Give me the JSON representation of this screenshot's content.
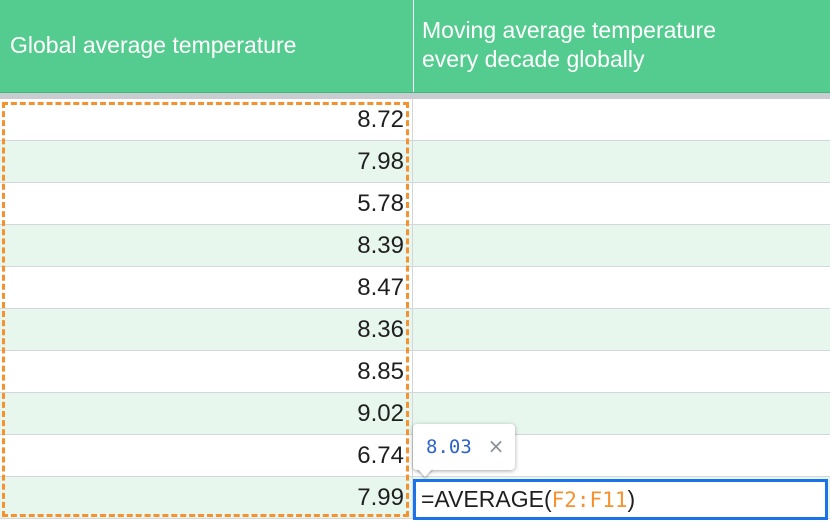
{
  "header": {
    "col1": "Global average temperature",
    "col2_line1": "Moving average temperature",
    "col2_line2": "every decade globally"
  },
  "values": [
    "8.72",
    "7.98",
    "5.78",
    "8.39",
    "8.47",
    "8.36",
    "8.85",
    "9.02",
    "6.74",
    "7.99"
  ],
  "tooltip": {
    "value": "8.03",
    "close_symbol": "×"
  },
  "formula": {
    "func": "=AVERAGE",
    "open": "(",
    "range": "F2:F11",
    "close": ")"
  },
  "colors": {
    "header_bg": "#55cc8f",
    "row_alt_bg": "#e7f7ee",
    "range_outline": "#f5922f",
    "active_cell_border": "#1a73e8",
    "tooltip_value": "#2e63c8"
  }
}
